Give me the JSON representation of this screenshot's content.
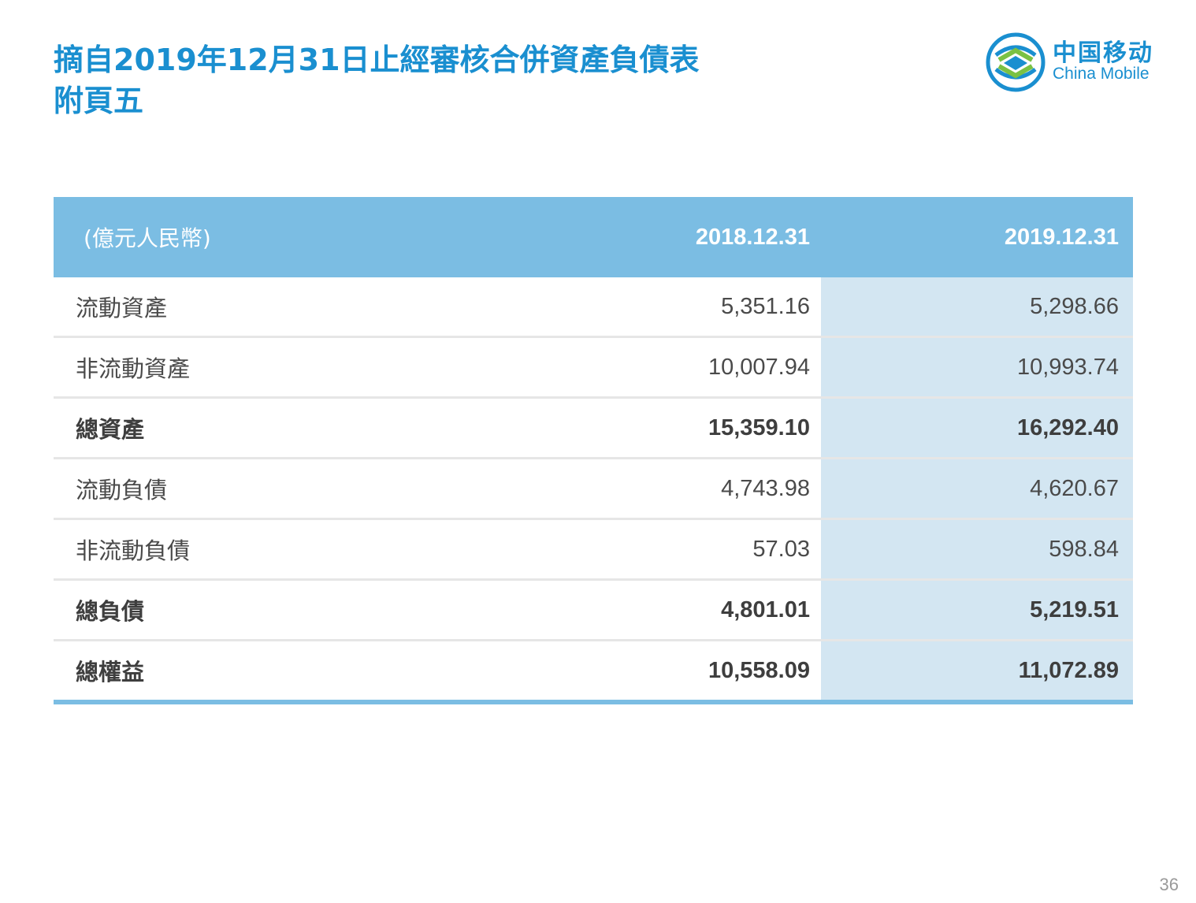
{
  "title": {
    "line1": "摘自2019年12月31日止經審核合併資產負債表",
    "line2": "附頁五"
  },
  "logo": {
    "cn": "中国移动",
    "en": "China Mobile",
    "icon": "china-mobile-logo-icon",
    "color": "#1a8fd0"
  },
  "table": {
    "header": {
      "label": " (億元人民幣)",
      "col_a": "2018.12.31",
      "col_b": "2019.12.31"
    },
    "rows": [
      {
        "label": "流動資產",
        "a": "5,351.16",
        "b": "5,298.66",
        "bold": false
      },
      {
        "label": "非流動資產",
        "a": "10,007.94",
        "b": "10,993.74",
        "bold": false
      },
      {
        "label": "總資產",
        "a": "15,359.10",
        "b": "16,292.40",
        "bold": true
      },
      {
        "label": "流動負債",
        "a": "4,743.98",
        "b": "4,620.67",
        "bold": false
      },
      {
        "label": "非流動負債",
        "a": "57.03",
        "b": "598.84",
        "bold": false
      },
      {
        "label": "總負債",
        "a": "4,801.01",
        "b": "5,219.51",
        "bold": true
      },
      {
        "label": "總權益",
        "a": "10,558.09",
        "b": "11,072.89",
        "bold": true
      }
    ]
  },
  "colors": {
    "header_bg": "#7bbde3",
    "highlight_col_bg": "#d3e6f2",
    "title": "#1a8fd0"
  },
  "page_number": "36"
}
